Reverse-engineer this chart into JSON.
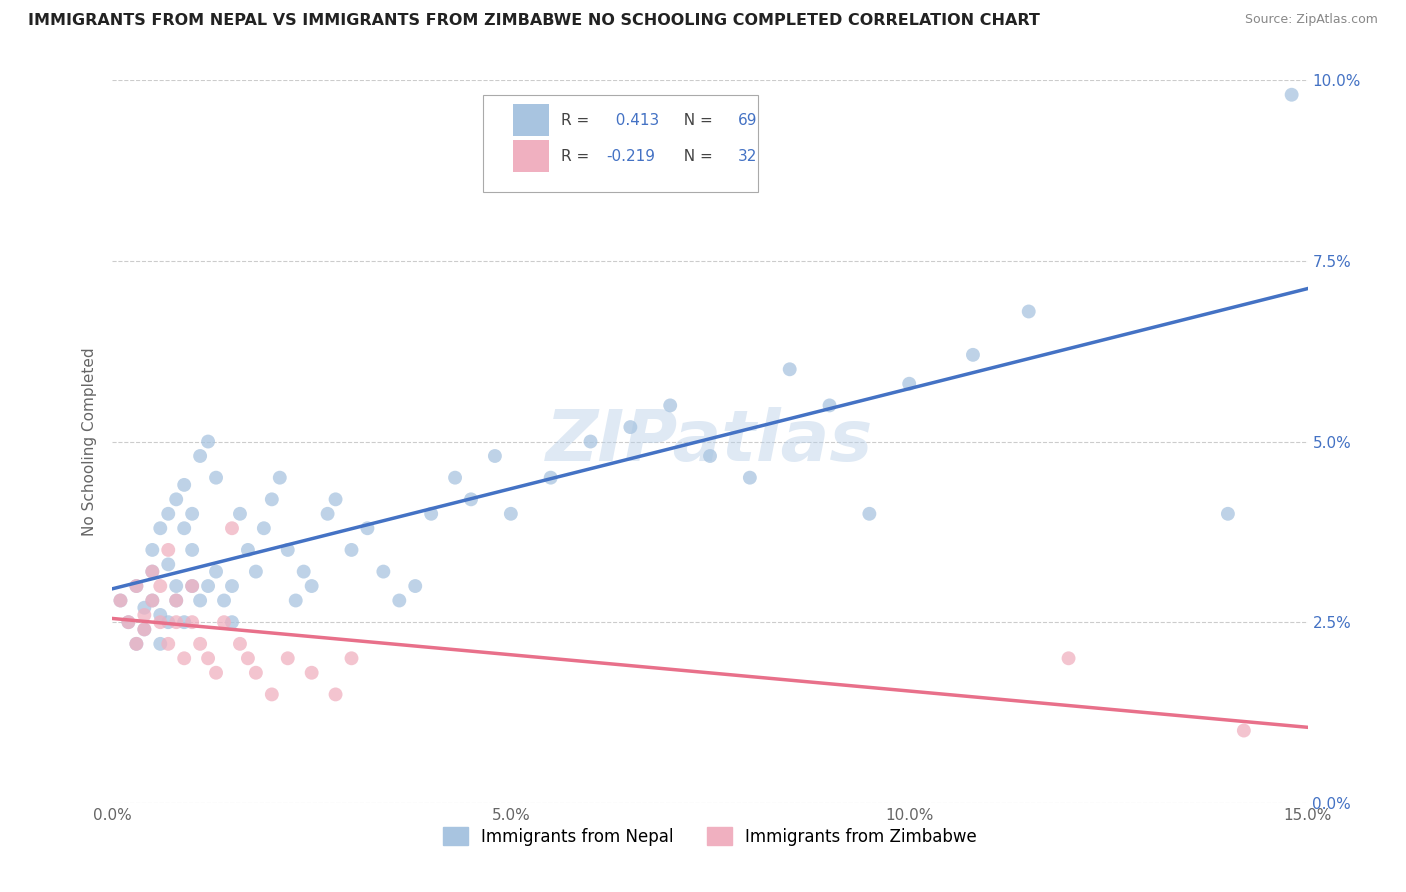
{
  "title": "IMMIGRANTS FROM NEPAL VS IMMIGRANTS FROM ZIMBABWE NO SCHOOLING COMPLETED CORRELATION CHART",
  "source": "Source: ZipAtlas.com",
  "xlabel_nepal": "Immigrants from Nepal",
  "xlabel_zimbabwe": "Immigrants from Zimbabwe",
  "ylabel": "No Schooling Completed",
  "xlim": [
    0.0,
    0.15
  ],
  "ylim": [
    0.0,
    0.1
  ],
  "xticks": [
    0.0,
    0.05,
    0.1,
    0.15
  ],
  "yticks": [
    0.0,
    0.025,
    0.05,
    0.075,
    0.1
  ],
  "nepal_color": "#a8c4e0",
  "zimbabwe_color": "#f0b0c0",
  "nepal_line_color": "#4472c4",
  "zimbabwe_line_color": "#e8708a",
  "nepal_R": 0.413,
  "nepal_N": 69,
  "zimbabwe_R": -0.219,
  "zimbabwe_N": 32,
  "nepal_scatter_x": [
    0.001,
    0.002,
    0.003,
    0.003,
    0.004,
    0.004,
    0.005,
    0.005,
    0.005,
    0.006,
    0.006,
    0.006,
    0.007,
    0.007,
    0.007,
    0.008,
    0.008,
    0.008,
    0.009,
    0.009,
    0.009,
    0.01,
    0.01,
    0.01,
    0.011,
    0.011,
    0.012,
    0.012,
    0.013,
    0.013,
    0.014,
    0.015,
    0.015,
    0.016,
    0.017,
    0.018,
    0.019,
    0.02,
    0.021,
    0.022,
    0.023,
    0.024,
    0.025,
    0.027,
    0.028,
    0.03,
    0.032,
    0.034,
    0.036,
    0.038,
    0.04,
    0.043,
    0.045,
    0.048,
    0.05,
    0.055,
    0.06,
    0.065,
    0.07,
    0.075,
    0.08,
    0.085,
    0.09,
    0.095,
    0.1,
    0.108,
    0.115,
    0.14,
    0.148
  ],
  "nepal_scatter_y": [
    0.028,
    0.025,
    0.03,
    0.022,
    0.027,
    0.024,
    0.035,
    0.028,
    0.032,
    0.026,
    0.038,
    0.022,
    0.04,
    0.033,
    0.025,
    0.042,
    0.028,
    0.03,
    0.044,
    0.038,
    0.025,
    0.04,
    0.035,
    0.03,
    0.048,
    0.028,
    0.05,
    0.03,
    0.045,
    0.032,
    0.028,
    0.03,
    0.025,
    0.04,
    0.035,
    0.032,
    0.038,
    0.042,
    0.045,
    0.035,
    0.028,
    0.032,
    0.03,
    0.04,
    0.042,
    0.035,
    0.038,
    0.032,
    0.028,
    0.03,
    0.04,
    0.045,
    0.042,
    0.048,
    0.04,
    0.045,
    0.05,
    0.052,
    0.055,
    0.048,
    0.045,
    0.06,
    0.055,
    0.04,
    0.058,
    0.062,
    0.068,
    0.04,
    0.098
  ],
  "zimbabwe_scatter_x": [
    0.001,
    0.002,
    0.003,
    0.003,
    0.004,
    0.004,
    0.005,
    0.005,
    0.006,
    0.006,
    0.007,
    0.007,
    0.008,
    0.008,
    0.009,
    0.01,
    0.01,
    0.011,
    0.012,
    0.013,
    0.014,
    0.015,
    0.016,
    0.017,
    0.018,
    0.02,
    0.022,
    0.025,
    0.028,
    0.03,
    0.12,
    0.142
  ],
  "zimbabwe_scatter_y": [
    0.028,
    0.025,
    0.03,
    0.022,
    0.026,
    0.024,
    0.028,
    0.032,
    0.025,
    0.03,
    0.022,
    0.035,
    0.028,
    0.025,
    0.02,
    0.025,
    0.03,
    0.022,
    0.02,
    0.018,
    0.025,
    0.038,
    0.022,
    0.02,
    0.018,
    0.015,
    0.02,
    0.018,
    0.015,
    0.02,
    0.02,
    0.01
  ]
}
